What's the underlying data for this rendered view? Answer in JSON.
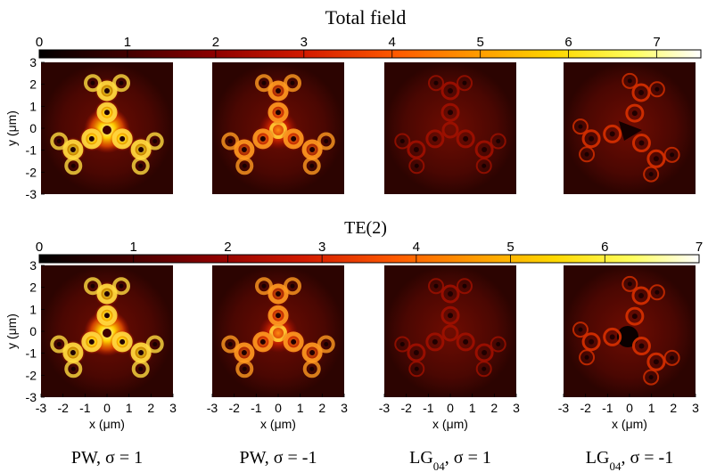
{
  "titles": {
    "top": "Total field",
    "bottom": "TE(2)"
  },
  "colorbars": {
    "top": {
      "min": 0,
      "max": 7.5,
      "ticks": [
        "0",
        "1",
        "2",
        "3",
        "4",
        "5",
        "6",
        "7"
      ]
    },
    "bottom": {
      "min": 0,
      "max": 7,
      "ticks": [
        "0",
        "1",
        "2",
        "3",
        "4",
        "5",
        "6",
        "7"
      ]
    }
  },
  "axes": {
    "ylabel": "y (μm)",
    "xlabel": "x (μm)",
    "yticks": [
      "3",
      "2",
      "1",
      "0",
      "-1",
      "-2",
      "-3"
    ],
    "xticks": [
      "-3",
      "-2",
      "-1",
      "0",
      "1",
      "2",
      "3"
    ]
  },
  "columns": [
    {
      "base": "PW",
      "sub": "",
      "sigma": ", σ = 1"
    },
    {
      "base": "PW",
      "sub": "",
      "sigma": ", σ = -1"
    },
    {
      "base": "LG",
      "sub": "04",
      "sigma": ", σ = 1"
    },
    {
      "base": "LG",
      "sub": "04",
      "sigma": ", σ = -1"
    }
  ],
  "colors": {
    "colormap": [
      "#000000",
      "#3a0000",
      "#8a0000",
      "#d21a00",
      "#ff5a00",
      "#ff9a00",
      "#ffd800",
      "#ffff60",
      "#ffffff"
    ],
    "panel_background": "#3a0602"
  }
}
